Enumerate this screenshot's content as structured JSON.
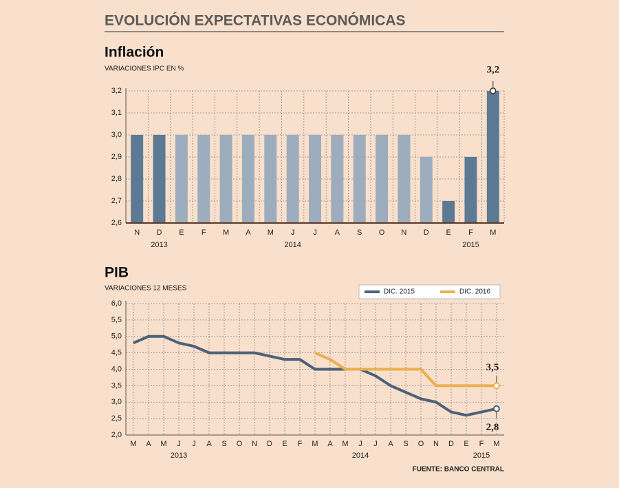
{
  "title": "EVOLUCIÓN  EXPECTATIVAS ECONÓMICAS",
  "source": "FUENTE: BANCO CENTRAL",
  "chart_data": [
    {
      "type": "bar",
      "title": "Inflación",
      "subtitle": "VARIACIONES IPC EN %",
      "categories": [
        "N",
        "D",
        "E",
        "F",
        "M",
        "A",
        "M",
        "J",
        "J",
        "A",
        "S",
        "O",
        "N",
        "D",
        "E",
        "F",
        "M"
      ],
      "years": [
        null,
        "2013",
        null,
        null,
        null,
        null,
        null,
        "2014",
        null,
        null,
        null,
        null,
        null,
        null,
        null,
        "2015",
        null
      ],
      "values": [
        3.0,
        3.0,
        3.0,
        3.0,
        3.0,
        3.0,
        3.0,
        3.0,
        3.0,
        3.0,
        3.0,
        3.0,
        3.0,
        2.9,
        2.7,
        2.9,
        3.2
      ],
      "value_labels": [
        null,
        null,
        null,
        null,
        null,
        null,
        null,
        null,
        null,
        null,
        null,
        null,
        null,
        null,
        null,
        null,
        "3,2"
      ],
      "colors": [
        "#5d7a94",
        "#5d7a94",
        "#9dadbd",
        "#9dadbd",
        "#9dadbd",
        "#9dadbd",
        "#9dadbd",
        "#9dadbd",
        "#9dadbd",
        "#9dadbd",
        "#9dadbd",
        "#9dadbd",
        "#9dadbd",
        "#9dadbd",
        "#5d7a94",
        "#5d7a94",
        "#5d7a94"
      ],
      "ylim": [
        2.6,
        3.2
      ],
      "yticks": [
        {
          "value": 2.6,
          "label": "2,6"
        },
        {
          "value": 2.7,
          "label": "2,7"
        },
        {
          "value": 2.8,
          "label": "2,8"
        },
        {
          "value": 2.9,
          "label": "2,9"
        },
        {
          "value": 3.0,
          "label": "3,0"
        },
        {
          "value": 3.1,
          "label": "3,1"
        },
        {
          "value": 3.2,
          "label": "3,2"
        }
      ],
      "grid": true
    },
    {
      "type": "line",
      "title": "PIB",
      "subtitle": "VARIACIONES 12 MESES",
      "categories": [
        "M",
        "A",
        "M",
        "J",
        "J",
        "A",
        "S",
        "O",
        "N",
        "D",
        "E",
        "F",
        "M",
        "A",
        "M",
        "J",
        "J",
        "A",
        "S",
        "O",
        "N",
        "D",
        "E",
        "F",
        "M"
      ],
      "years": [
        null,
        null,
        null,
        "2013",
        null,
        null,
        null,
        null,
        null,
        null,
        null,
        null,
        null,
        null,
        null,
        "2014",
        null,
        null,
        null,
        null,
        null,
        null,
        null,
        "2015",
        null
      ],
      "series": [
        {
          "name": "DIC. 2015",
          "color": "#4d6178",
          "values": [
            4.8,
            5.0,
            5.0,
            4.8,
            4.7,
            4.5,
            4.5,
            4.5,
            4.5,
            4.4,
            4.3,
            4.3,
            4.0,
            4.0,
            4.0,
            4.0,
            3.8,
            3.5,
            3.3,
            3.1,
            3.0,
            2.7,
            2.6,
            2.7,
            2.8
          ],
          "value_labels": [
            null,
            null,
            null,
            null,
            null,
            null,
            null,
            null,
            null,
            null,
            null,
            null,
            null,
            null,
            null,
            null,
            null,
            null,
            null,
            null,
            null,
            null,
            null,
            null,
            "2,8"
          ]
        },
        {
          "name": "DIC. 2016",
          "color": "#e9b04f",
          "values": [
            null,
            null,
            null,
            null,
            null,
            null,
            null,
            null,
            null,
            null,
            null,
            null,
            4.5,
            4.3,
            4.0,
            4.0,
            4.0,
            4.0,
            4.0,
            4.0,
            3.5,
            3.5,
            3.5,
            3.5,
            3.5
          ],
          "value_labels": [
            null,
            null,
            null,
            null,
            null,
            null,
            null,
            null,
            null,
            null,
            null,
            null,
            null,
            null,
            null,
            null,
            null,
            null,
            null,
            null,
            null,
            null,
            null,
            null,
            "3,5"
          ]
        }
      ],
      "ylim": [
        2.0,
        6.0
      ],
      "yticks": [
        {
          "value": 2.0,
          "label": "2,0"
        },
        {
          "value": 2.5,
          "label": "2,5"
        },
        {
          "value": 3.0,
          "label": "3,0"
        },
        {
          "value": 3.5,
          "label": "3,5"
        },
        {
          "value": 4.0,
          "label": "4,0"
        },
        {
          "value": 4.5,
          "label": "4,5"
        },
        {
          "value": 5.0,
          "label": "5,0"
        },
        {
          "value": 5.5,
          "label": "5,5"
        },
        {
          "value": 6.0,
          "label": "6,0"
        }
      ],
      "grid": true
    }
  ]
}
